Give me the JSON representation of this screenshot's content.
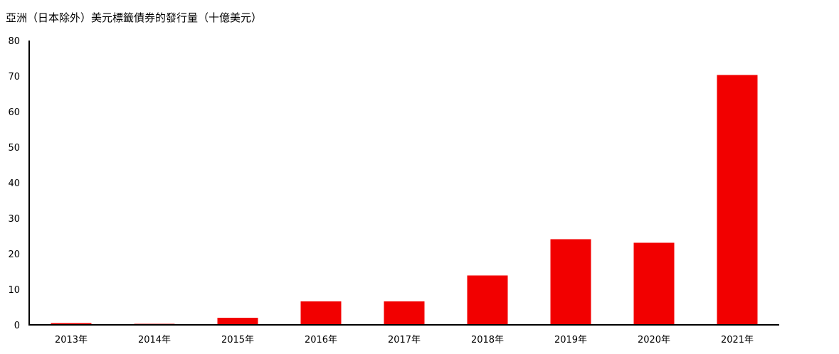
{
  "chart_data": {
    "type": "bar",
    "title": "亞洲（日本除外）美元標籤債券的發行量（十億美元）",
    "xlabel": "",
    "ylabel": "",
    "categories": [
      "2013年",
      "2014年",
      "2015年",
      "2016年",
      "2017年",
      "2018年",
      "2019年",
      "2020年",
      "2021年"
    ],
    "values": [
      0.5,
      0.3,
      2.0,
      6.6,
      6.6,
      13.9,
      24.1,
      23.1,
      70.3
    ],
    "ylim": [
      0,
      80
    ],
    "yticks": [
      0,
      10,
      20,
      30,
      40,
      50,
      60,
      70,
      80
    ],
    "grid": false,
    "legend": "none",
    "bar_color": "#f20000",
    "axis_color": "#000000"
  }
}
